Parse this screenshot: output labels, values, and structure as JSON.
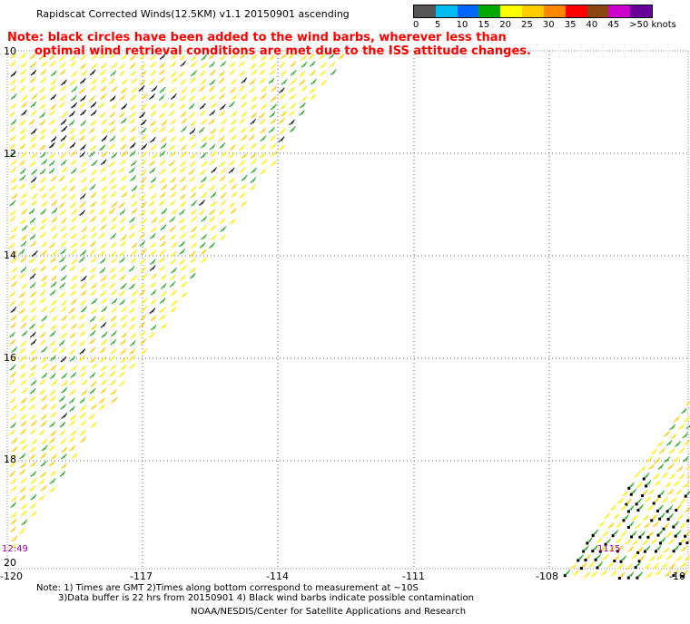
{
  "header": {
    "title": "Rapidscat Corrected Winds(12.5KM) v1.1 20150901 ascending",
    "note_line1": "Note: black circles have been added to the wind barbs, wherever less than",
    "note_line2": "optimal wind retrieval conditions are met due to the ISS attitude changes."
  },
  "legend": {
    "labels": [
      "0",
      "5",
      "10",
      "15",
      "20",
      "25",
      "30",
      "35",
      "40",
      "45",
      ">50 knots"
    ],
    "colors": [
      "#555555",
      "#00bbee",
      "#0066ff",
      "#00aa00",
      "#ffff00",
      "#ffcc00",
      "#ff8800",
      "#ff0000",
      "#8b4513",
      "#cc00cc",
      "#660099"
    ]
  },
  "map": {
    "lat_labels": [
      "10",
      "12",
      "14",
      "16",
      "18",
      "20"
    ],
    "lon_labels": [
      "-120",
      "-117",
      "-114",
      "-111",
      "-108",
      "-10"
    ],
    "time_labels": [
      "12:49",
      "1115"
    ]
  },
  "footer": {
    "line1": "Note: 1) Times are GMT 2)Times along bottom correspond to measurement at ~10S",
    "line2": "3)Data buffer is 22 hrs from 20150901 4) Black wind barbs indicate possible contamination",
    "line3": "NOAA/NESDIS/Center for Satellite Applications and Research"
  }
}
